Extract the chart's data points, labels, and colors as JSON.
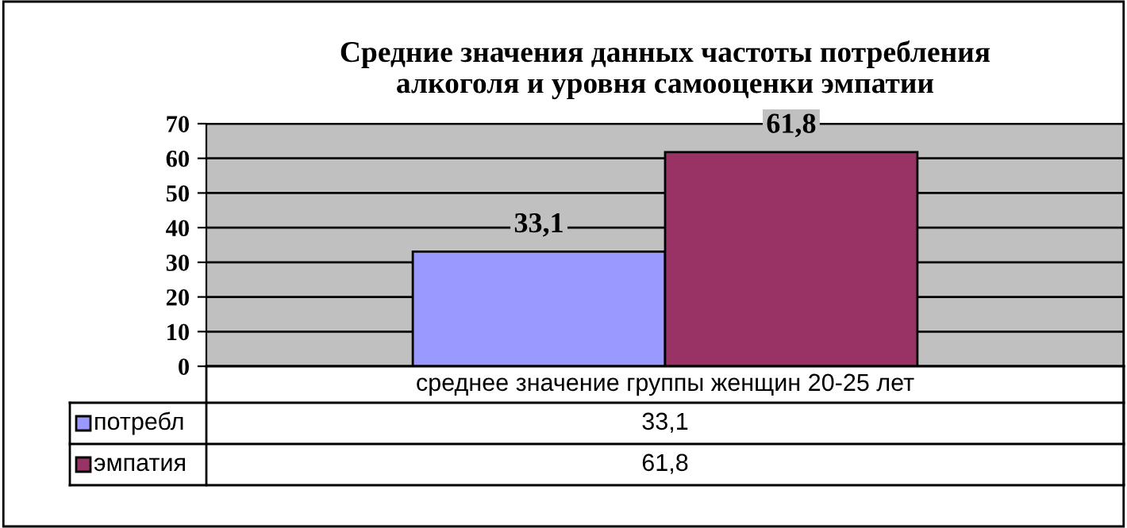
{
  "chart_data": {
    "type": "bar",
    "title": "Средние значения данных частоты потребления\nалкоголя и уровня самооценки эмпатии",
    "categories": [
      "среднее значение группы женщин 20-25 лет"
    ],
    "series": [
      {
        "name": "потребл",
        "color": "#9999ff",
        "values": [
          33.1
        ],
        "value_labels": [
          "33,1"
        ]
      },
      {
        "name": "эмпатия",
        "color": "#993366",
        "values": [
          61.8
        ],
        "value_labels": [
          "61,8"
        ]
      }
    ],
    "ylim": [
      0,
      70
    ],
    "yticks": [
      0,
      10,
      20,
      30,
      40,
      50,
      60,
      70
    ],
    "grid": "y",
    "legend": "bottom"
  }
}
